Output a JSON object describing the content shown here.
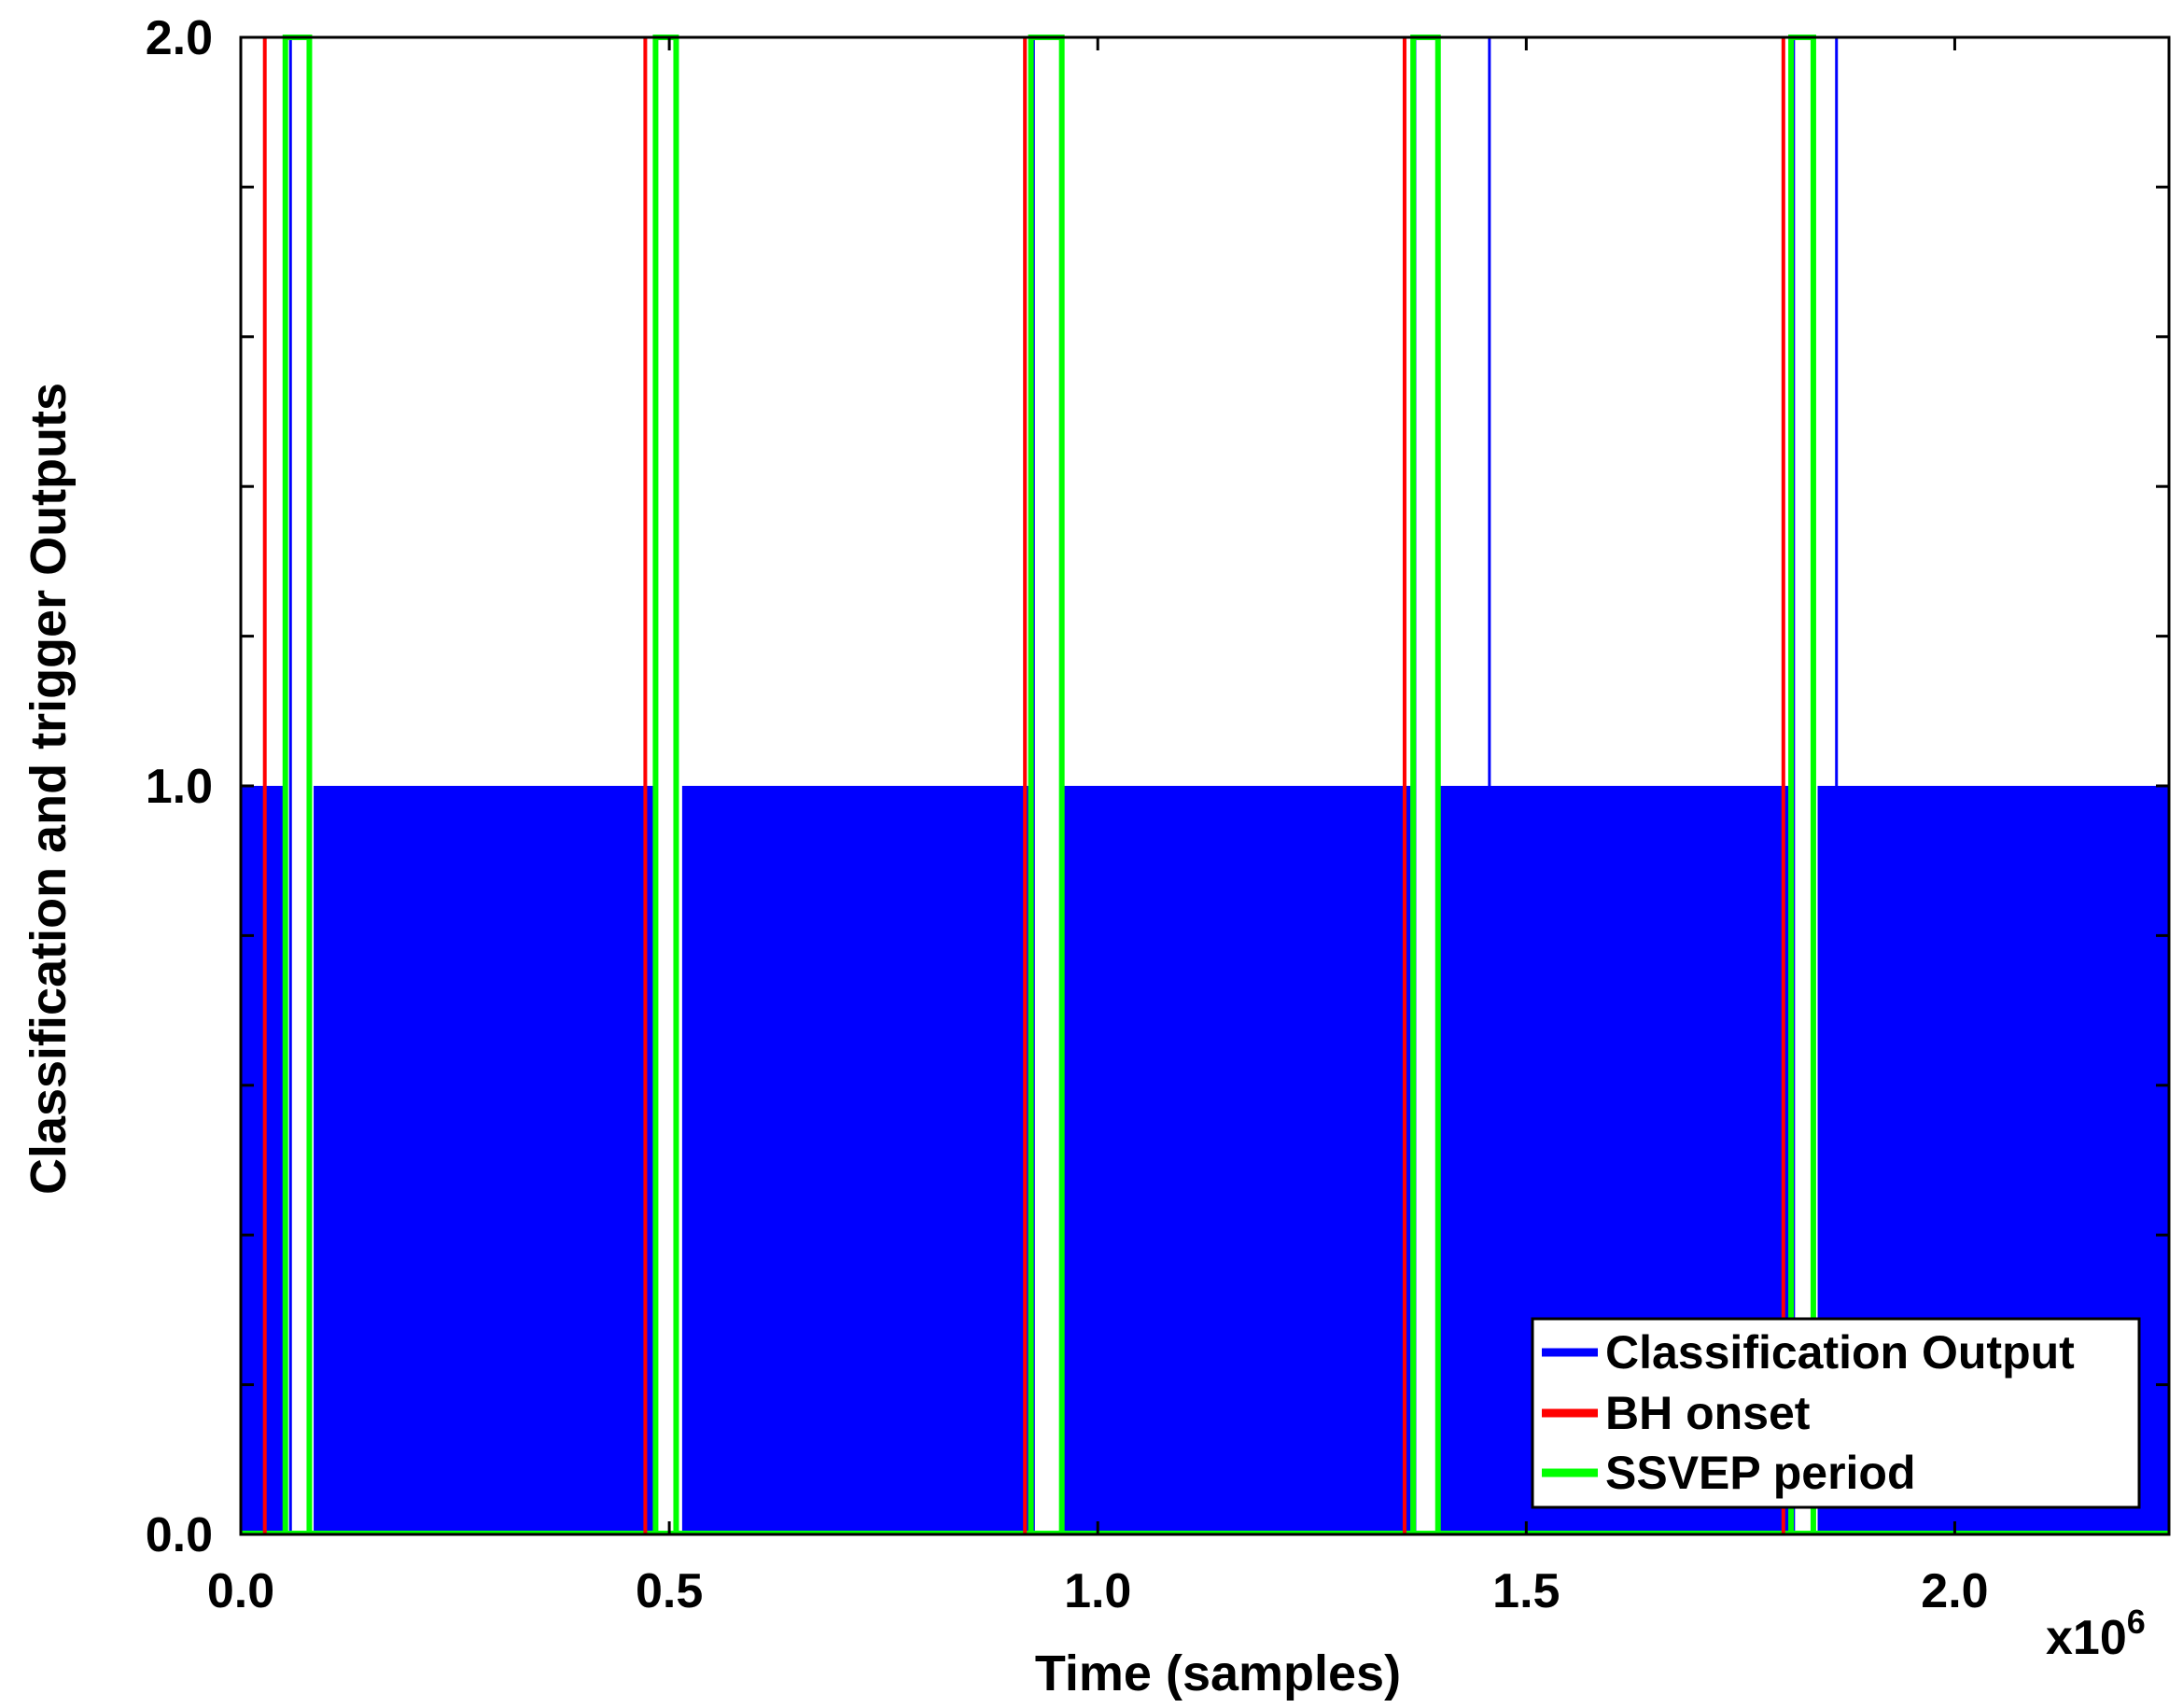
{
  "chart_data": {
    "type": "line",
    "title": "",
    "xlabel": "Time (samples)",
    "ylabel": "Classification and trigger Outputs",
    "x_multiplier_label": "x10",
    "x_multiplier_exp": "6",
    "xlim": [
      0,
      2.25
    ],
    "ylim": [
      0,
      2.0
    ],
    "x_unit_scale": 1000000,
    "xticks": [
      0.0,
      0.5,
      1.0,
      1.5,
      2.0
    ],
    "xtick_labels": [
      "0.0",
      "0.5",
      "1.0",
      "1.5",
      "2.0"
    ],
    "yticks_labeled": [
      0.0,
      1.0,
      2.0
    ],
    "ytick_labels": [
      "0.0",
      "1.0",
      "2.0"
    ],
    "yticks_minor": [
      0.2,
      0.4,
      0.6,
      0.8,
      1.2,
      1.4,
      1.6,
      1.8
    ],
    "grid": false,
    "legend_position": "bottom-right",
    "series": [
      {
        "name": "Classification Output",
        "color": "#0000ff",
        "baseline_value": 1,
        "zero_intervals": [
          [
            0.055,
            0.085
          ],
          [
            0.485,
            0.515
          ],
          [
            0.925,
            0.96
          ],
          [
            1.365,
            1.4
          ],
          [
            1.81,
            1.84
          ]
        ],
        "spikes_to_2": [
          0.058,
          0.485,
          0.925,
          1.37,
          1.457,
          1.812,
          1.862
        ]
      },
      {
        "name": "BH onset",
        "color": "#ff0000",
        "onsets": [
          0.028,
          0.472,
          0.915,
          1.358,
          1.8
        ]
      },
      {
        "name": "SSVEP period",
        "color": "#00ff00",
        "pulse_intervals": [
          [
            0.052,
            0.08
          ],
          [
            0.484,
            0.508
          ],
          [
            0.922,
            0.958
          ],
          [
            1.368,
            1.397
          ],
          [
            1.809,
            1.835
          ]
        ]
      }
    ]
  }
}
